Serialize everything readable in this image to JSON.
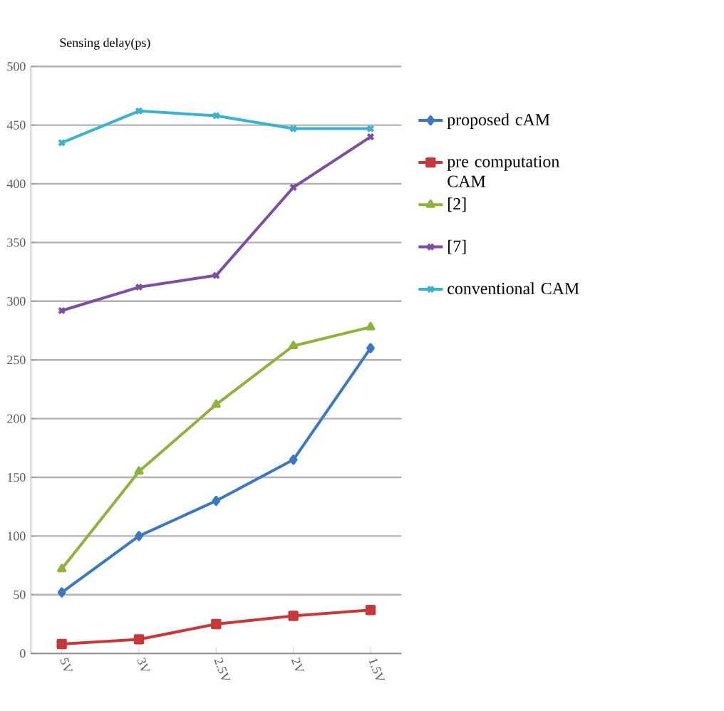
{
  "chart_data": {
    "type": "line",
    "ylabel": "Sensing delay(ps)",
    "categories": [
      "5V",
      "3V",
      "2.5V",
      "2V",
      "1.5V"
    ],
    "series": [
      {
        "name": "proposed cAM",
        "color": "#3a78c4",
        "values": [
          52,
          100,
          130,
          165,
          260
        ],
        "marker": "diamond"
      },
      {
        "name": "pre computation CAM",
        "color": "#c8373a",
        "values": [
          8,
          12,
          25,
          32,
          37
        ],
        "marker": "square"
      },
      {
        "name": "[2]",
        "color": "#8db33a",
        "values": [
          72,
          155,
          212,
          262,
          278
        ],
        "marker": "triangle"
      },
      {
        "name": "[7]",
        "color": "#7b4fa3",
        "values": [
          292,
          312,
          322,
          397,
          440
        ],
        "marker": "cross"
      },
      {
        "name": "conventional CAM",
        "color": "#3bb3cf",
        "values": [
          435,
          462,
          458,
          447,
          447
        ],
        "marker": "cross"
      }
    ],
    "ylim": [
      0,
      500
    ],
    "yticks": [
      0,
      50,
      100,
      150,
      200,
      250,
      300,
      350,
      400,
      450,
      500
    ],
    "grid": "y",
    "legend": "right",
    "line_style": "solid"
  }
}
